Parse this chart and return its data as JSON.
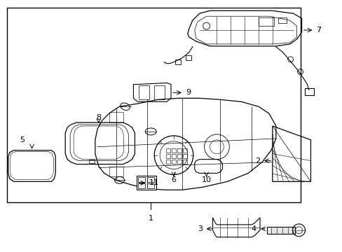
{
  "background_color": "#ffffff",
  "line_color": "#000000",
  "text_color": "#000000",
  "fig_width": 4.89,
  "fig_height": 3.6,
  "dpi": 100,
  "font_size": 8
}
